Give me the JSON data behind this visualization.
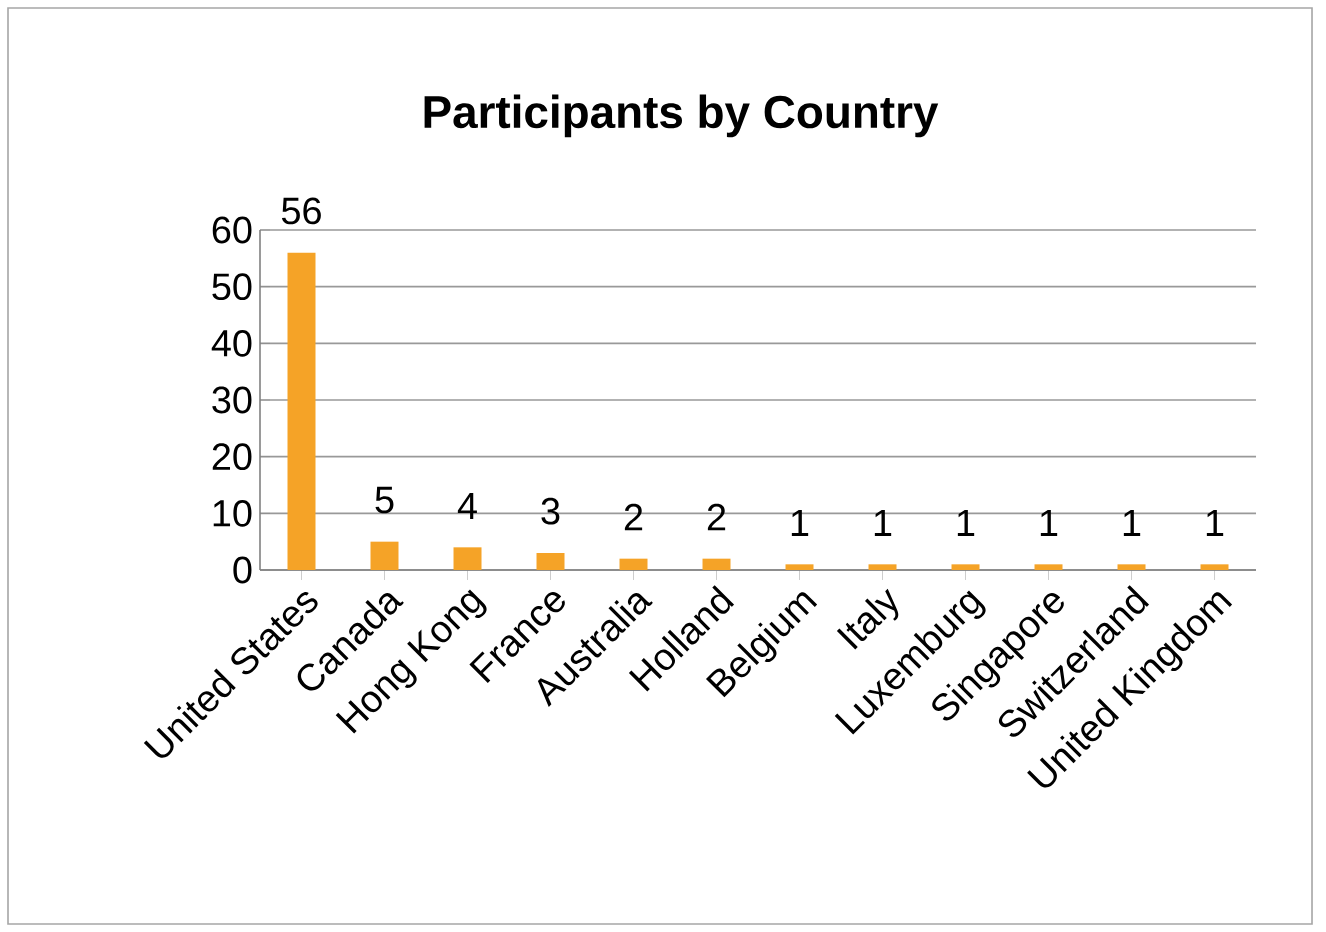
{
  "chart_data": {
    "type": "bar",
    "title": "Participants by Country",
    "categories": [
      "United States",
      "Canada",
      "Hong Kong",
      "France",
      "Australia",
      "Holland",
      "Belgium",
      "Italy",
      "Luxemburg",
      "Singapore",
      "Switzerland",
      "United Kingdom"
    ],
    "values": [
      56,
      5,
      4,
      3,
      2,
      2,
      1,
      1,
      1,
      1,
      1,
      1
    ],
    "color": "#f5a327",
    "ylim": [
      0,
      60
    ],
    "yticks": [
      0,
      10,
      20,
      30,
      40,
      50,
      60
    ],
    "grid": "y",
    "data_labels": true
  }
}
